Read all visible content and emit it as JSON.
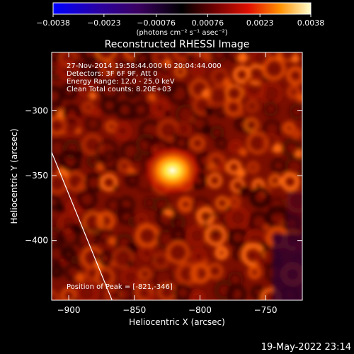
{
  "chart_data": {
    "type": "heatmap",
    "title": "Reconstructed RHESSI Image",
    "xlabel": "Heliocentric X (arcsec)",
    "ylabel": "Heliocentric Y (arcsec)",
    "xlim": [
      -913,
      -722
    ],
    "ylim": [
      -446,
      -255
    ],
    "x_ticks": [
      {
        "value": -900,
        "label": "−900"
      },
      {
        "value": -850,
        "label": "−850"
      },
      {
        "value": -800,
        "label": "−800"
      },
      {
        "value": -750,
        "label": "−750"
      }
    ],
    "y_ticks": [
      {
        "value": -300,
        "label": "−300"
      },
      {
        "value": -350,
        "label": "−350"
      },
      {
        "value": -400,
        "label": "−400"
      }
    ],
    "colorbar": {
      "range": [
        -0.0038,
        0.0038
      ],
      "ticks": [
        {
          "value": -0.0038,
          "label": "−0.0038"
        },
        {
          "value": -0.0023,
          "label": "−0.0023"
        },
        {
          "value": -0.00076,
          "label": "−0.00076"
        },
        {
          "value": 0.00076,
          "label": "0.00076"
        },
        {
          "value": 0.0023,
          "label": "0.0023"
        },
        {
          "value": 0.0038,
          "label": "0.0038"
        }
      ],
      "unit_label": "(photons cm⁻² s⁻¹ asec⁻²)"
    },
    "info_lines": [
      "27-Nov-2014 19:58:44.000 to 20:04:44.000",
      "Detectors: 3F 6F 9F, Att 0",
      "Energy Range: 12.0 - 25.0 keV",
      "Clean    Total counts: 8.20E+03"
    ],
    "peak": {
      "x": -821,
      "y": -346,
      "label": "Position of Peak = [-821,-346]"
    },
    "limb_line": [
      [
        -913,
        -332
      ],
      [
        -867,
        -446
      ]
    ],
    "footer_date": "19-May-2022 23:14"
  }
}
